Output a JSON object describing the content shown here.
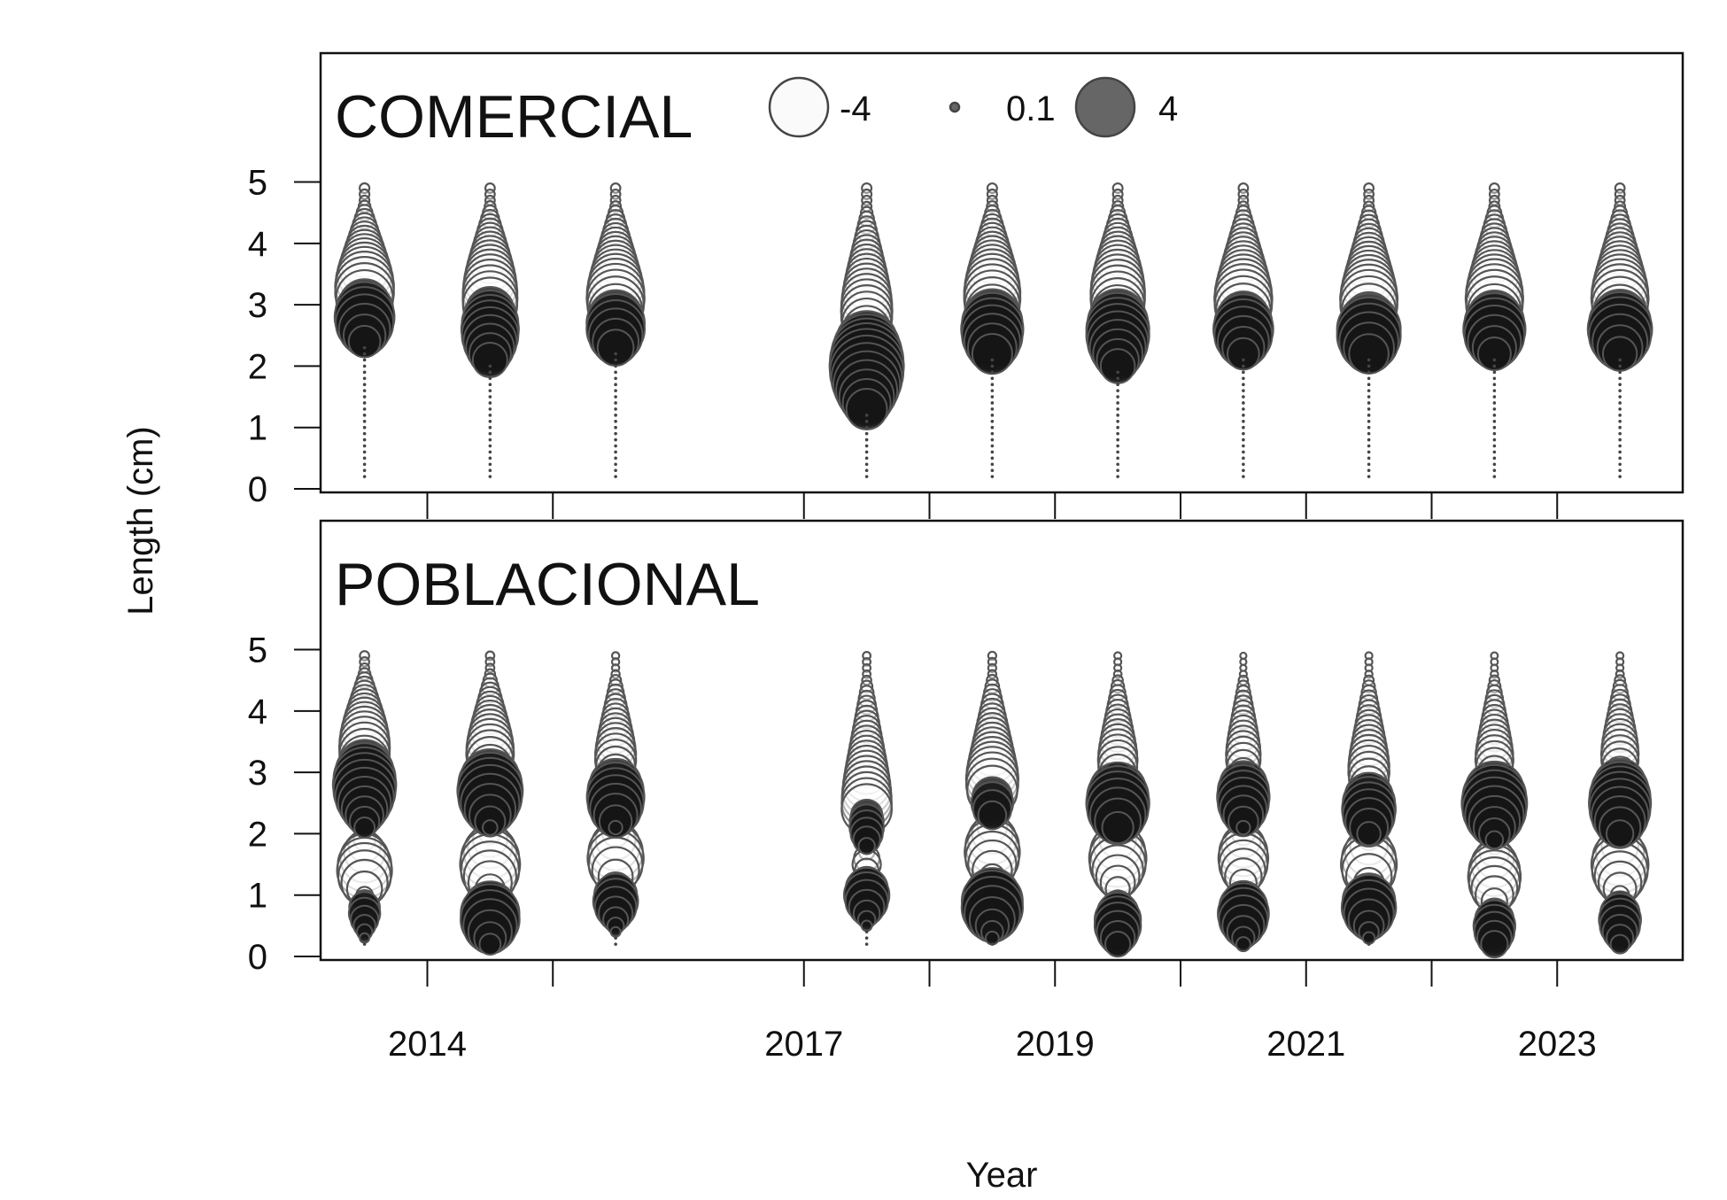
{
  "chart_data": {
    "type": "scatter",
    "subtype": "bubble-residuals",
    "xlabel": "Year",
    "ylabel": "Length (cm)",
    "x_ticks_labeled": [
      "2014",
      "2017",
      "2019",
      "2021",
      "2023"
    ],
    "x_ticks_all": [
      2014,
      2015,
      2017,
      2018,
      2019,
      2020,
      2021,
      2022,
      2023
    ],
    "xlim": [
      2013.15,
      2024.0
    ],
    "ylim": [
      0,
      7.1
    ],
    "y_ticks": [
      0,
      1,
      2,
      3,
      4,
      5
    ],
    "years": [
      2013.5,
      2014.5,
      2015.5,
      2017.5,
      2018.5,
      2019.5,
      2020.5,
      2021.5,
      2022.5,
      2023.5
    ],
    "colors": {
      "positive": "#151515",
      "negative": "#ffffff",
      "outline": "#555555",
      "legend_positive": "#666666"
    },
    "legend": {
      "entries": [
        {
          "label": "-4",
          "value": -4
        },
        {
          "label": "0.1",
          "value": 0.1
        },
        {
          "label": "4",
          "value": 4
        }
      ]
    },
    "panels": [
      {
        "title": "COMERCIAL",
        "columns": [
          {
            "year": 2013.5,
            "pos_center": 2.8,
            "pos_peak": 2.6,
            "pos_spread": 0.25,
            "neg_hi": 4.9,
            "neg_peak": 3.4,
            "min_len": 0.2
          },
          {
            "year": 2014.5,
            "pos_center": 2.6,
            "pos_peak": 2.4,
            "pos_spread": 0.35,
            "neg_hi": 4.9,
            "neg_peak": 3.2,
            "min_len": 0.2
          },
          {
            "year": 2015.5,
            "pos_center": 2.65,
            "pos_peak": 2.5,
            "pos_spread": 0.25,
            "neg_hi": 4.9,
            "neg_peak": 3.2,
            "min_len": 0.2
          },
          {
            "year": 2017.5,
            "pos_center": 2.0,
            "pos_peak": 4.0,
            "pos_spread": 0.45,
            "neg_hi": 4.9,
            "neg_peak": 3.3,
            "min_len": 0.2
          },
          {
            "year": 2018.5,
            "pos_center": 2.6,
            "pos_peak": 2.8,
            "pos_spread": 0.3,
            "neg_hi": 4.9,
            "neg_peak": 3.3,
            "min_len": 0.2
          },
          {
            "year": 2019.5,
            "pos_center": 2.55,
            "pos_peak": 2.9,
            "pos_spread": 0.35,
            "neg_hi": 4.9,
            "neg_peak": 3.3,
            "min_len": 0.2
          },
          {
            "year": 2020.5,
            "pos_center": 2.6,
            "pos_peak": 2.6,
            "pos_spread": 0.25,
            "neg_hi": 4.9,
            "neg_peak": 3.2,
            "min_len": 0.2
          },
          {
            "year": 2021.5,
            "pos_center": 2.55,
            "pos_peak": 3.0,
            "pos_spread": 0.25,
            "neg_hi": 4.9,
            "neg_peak": 3.2,
            "min_len": 0.2
          },
          {
            "year": 2022.5,
            "pos_center": 2.6,
            "pos_peak": 2.8,
            "pos_spread": 0.25,
            "neg_hi": 4.9,
            "neg_peak": 3.2,
            "min_len": 0.2
          },
          {
            "year": 2023.5,
            "pos_center": 2.6,
            "pos_peak": 3.0,
            "pos_spread": 0.25,
            "neg_hi": 4.9,
            "neg_peak": 3.2,
            "min_len": 0.2
          }
        ]
      },
      {
        "title": "POBLACIONAL",
        "columns": [
          {
            "year": 2013.5,
            "pos_center": 2.8,
            "pos_peak": 2.9,
            "pos_spread": 0.35,
            "neg_hi": 4.9,
            "neg_peak": 3.1,
            "neg2_center": 1.4,
            "neg2_peak": 2.2,
            "pos2_center": 0.8,
            "pos2_peak": 0.9,
            "min_len": 0.2
          },
          {
            "year": 2014.5,
            "pos_center": 2.7,
            "pos_peak": 3.1,
            "pos_spread": 0.3,
            "neg_hi": 4.9,
            "neg_peak": 2.6,
            "neg2_center": 1.5,
            "neg2_peak": 2.6,
            "pos2_center": 0.65,
            "pos2_peak": 2.6,
            "min_len": 0.2
          },
          {
            "year": 2015.5,
            "pos_center": 2.6,
            "pos_peak": 2.4,
            "pos_spread": 0.3,
            "neg_hi": 4.9,
            "neg_peak": 1.9,
            "neg2_center": 1.6,
            "neg2_peak": 2.3,
            "pos2_center": 0.95,
            "pos2_peak": 1.6,
            "min_len": 0.2
          },
          {
            "year": 2017.5,
            "pos_center": 2.1,
            "pos_peak": 0.9,
            "pos_spread": 0.3,
            "neg_hi": 4.9,
            "neg_peak": 2.1,
            "neg2_center": 1.4,
            "neg2_peak": 1.0,
            "pos2_center": 1.05,
            "pos2_peak": 1.9,
            "min_len": 0.2
          },
          {
            "year": 2018.5,
            "pos_center": 2.5,
            "pos_peak": 1.3,
            "pos_spread": 0.2,
            "neg_hi": 4.9,
            "neg_peak": 2.3,
            "neg2_center": 1.7,
            "neg2_peak": 2.2,
            "pos2_center": 0.85,
            "pos2_peak": 2.8,
            "min_len": 0.2
          },
          {
            "year": 2019.5,
            "pos_center": 2.5,
            "pos_peak": 2.9,
            "pos_spread": 0.3,
            "neg_hi": 4.9,
            "neg_peak": 1.8,
            "neg2_center": 1.6,
            "neg2_peak": 2.4,
            "pos2_center": 0.55,
            "pos2_peak": 1.6,
            "min_len": 0.2
          },
          {
            "year": 2020.5,
            "pos_center": 2.6,
            "pos_peak": 2.0,
            "pos_spread": 0.3,
            "neg_hi": 4.9,
            "neg_peak": 1.4,
            "neg2_center": 1.6,
            "neg2_peak": 1.8,
            "pos2_center": 0.7,
            "pos2_peak": 1.9,
            "min_len": 0.2
          },
          {
            "year": 2021.5,
            "pos_center": 2.4,
            "pos_peak": 2.1,
            "pos_spread": 0.3,
            "neg_hi": 4.9,
            "neg_peak": 1.8,
            "neg2_center": 1.5,
            "neg2_peak": 2.3,
            "pos2_center": 0.85,
            "pos2_peak": 2.3,
            "min_len": 0.2
          },
          {
            "year": 2022.5,
            "pos_center": 2.5,
            "pos_peak": 3.1,
            "pos_spread": 0.3,
            "neg_hi": 4.9,
            "neg_peak": 1.7,
            "neg2_center": 1.3,
            "neg2_peak": 2.0,
            "pos2_center": 0.5,
            "pos2_peak": 1.3,
            "min_len": 0.2
          },
          {
            "year": 2023.5,
            "pos_center": 2.5,
            "pos_peak": 2.8,
            "pos_spread": 0.35,
            "neg_hi": 4.9,
            "neg_peak": 1.8,
            "neg2_center": 1.5,
            "neg2_peak": 2.4,
            "pos2_center": 0.6,
            "pos2_peak": 1.3,
            "min_len": 0.2
          }
        ]
      }
    ]
  }
}
